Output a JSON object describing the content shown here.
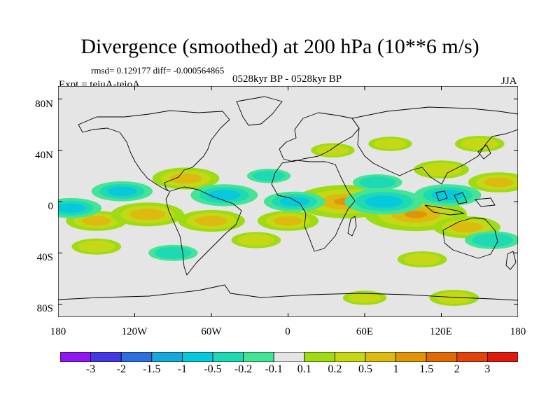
{
  "title": "Divergence (smoothed) at 200 hPa (10**6 m/s)",
  "stats": "rmsd= 0.129177 diff= -0.000564865",
  "period": "0528kyr BP - 0528kyr BP",
  "experiment": "Expt = teiuA-teioA",
  "season": "JJA",
  "axes": {
    "lat_ticks": [
      "80N",
      "40N",
      "0",
      "40S",
      "80S"
    ],
    "lon_ticks": [
      "180",
      "120W",
      "60W",
      "0",
      "60E",
      "120E",
      "180"
    ]
  },
  "colorbar": {
    "labels": [
      "-3",
      "-2",
      "-1.5",
      "-1",
      "-0.5",
      "-0.2",
      "-0.1",
      "0.1",
      "0.2",
      "0.5",
      "1",
      "1.5",
      "2",
      "3"
    ],
    "colors": [
      "#9118f2",
      "#4338e3",
      "#2e6fde",
      "#1aa7dc",
      "#08c8dc",
      "#1dd9b4",
      "#44e496",
      "#e5e5e5",
      "#9fdb13",
      "#c5d815",
      "#dcba0f",
      "#e09409",
      "#e06a06",
      "#e2430b",
      "#e0190c"
    ]
  },
  "chart_data": {
    "type": "contour-map",
    "variable": "Divergence (smoothed) at 200 hPa",
    "units": "10**6 m/s",
    "lon_range": [
      -180,
      180
    ],
    "lat_range": [
      -90,
      90
    ],
    "levels": [
      -3,
      -2,
      -1.5,
      -1,
      -0.5,
      -0.2,
      -0.1,
      0.1,
      0.2,
      0.5,
      1,
      1.5,
      2,
      3
    ],
    "anomalies": [
      {
        "lon": 45,
        "lat": 0,
        "value": 1.2
      },
      {
        "lon": 100,
        "lat": -10,
        "value": 1.2
      },
      {
        "lon": -80,
        "lat": 18,
        "value": 0.6
      },
      {
        "lon": -150,
        "lat": -15,
        "value": 0.5
      },
      {
        "lon": -110,
        "lat": -10,
        "value": 0.7
      },
      {
        "lon": -60,
        "lat": -15,
        "value": 0.6
      },
      {
        "lon": 0,
        "lat": -15,
        "value": 0.5
      },
      {
        "lon": -25,
        "lat": -30,
        "value": 0.3
      },
      {
        "lon": 140,
        "lat": -20,
        "value": 0.6
      },
      {
        "lon": 165,
        "lat": 15,
        "value": 0.5
      },
      {
        "lon": 120,
        "lat": 25,
        "value": 0.4
      },
      {
        "lon": 150,
        "lat": 45,
        "value": 0.3
      },
      {
        "lon": 80,
        "lat": 45,
        "value": 0.2
      },
      {
        "lon": 35,
        "lat": 40,
        "value": 0.2
      },
      {
        "lon": 105,
        "lat": -45,
        "value": 0.3
      },
      {
        "lon": 130,
        "lat": -75,
        "value": 0.3
      },
      {
        "lon": 60,
        "lat": -75,
        "value": 0.2
      },
      {
        "lon": -150,
        "lat": -35,
        "value": 0.3
      },
      {
        "lon": -130,
        "lat": 8,
        "value": -0.5
      },
      {
        "lon": -50,
        "lat": 5,
        "value": -0.6
      },
      {
        "lon": 5,
        "lat": 0,
        "value": -0.5
      },
      {
        "lon": 75,
        "lat": 0,
        "value": -0.8
      },
      {
        "lon": 125,
        "lat": 5,
        "value": -0.6
      },
      {
        "lon": -170,
        "lat": -5,
        "value": -0.5
      },
      {
        "lon": -90,
        "lat": -40,
        "value": -0.3
      },
      {
        "lon": 70,
        "lat": 15,
        "value": -0.3
      },
      {
        "lon": 160,
        "lat": -30,
        "value": -0.4
      },
      {
        "lon": -15,
        "lat": 20,
        "value": -0.2
      }
    ]
  }
}
